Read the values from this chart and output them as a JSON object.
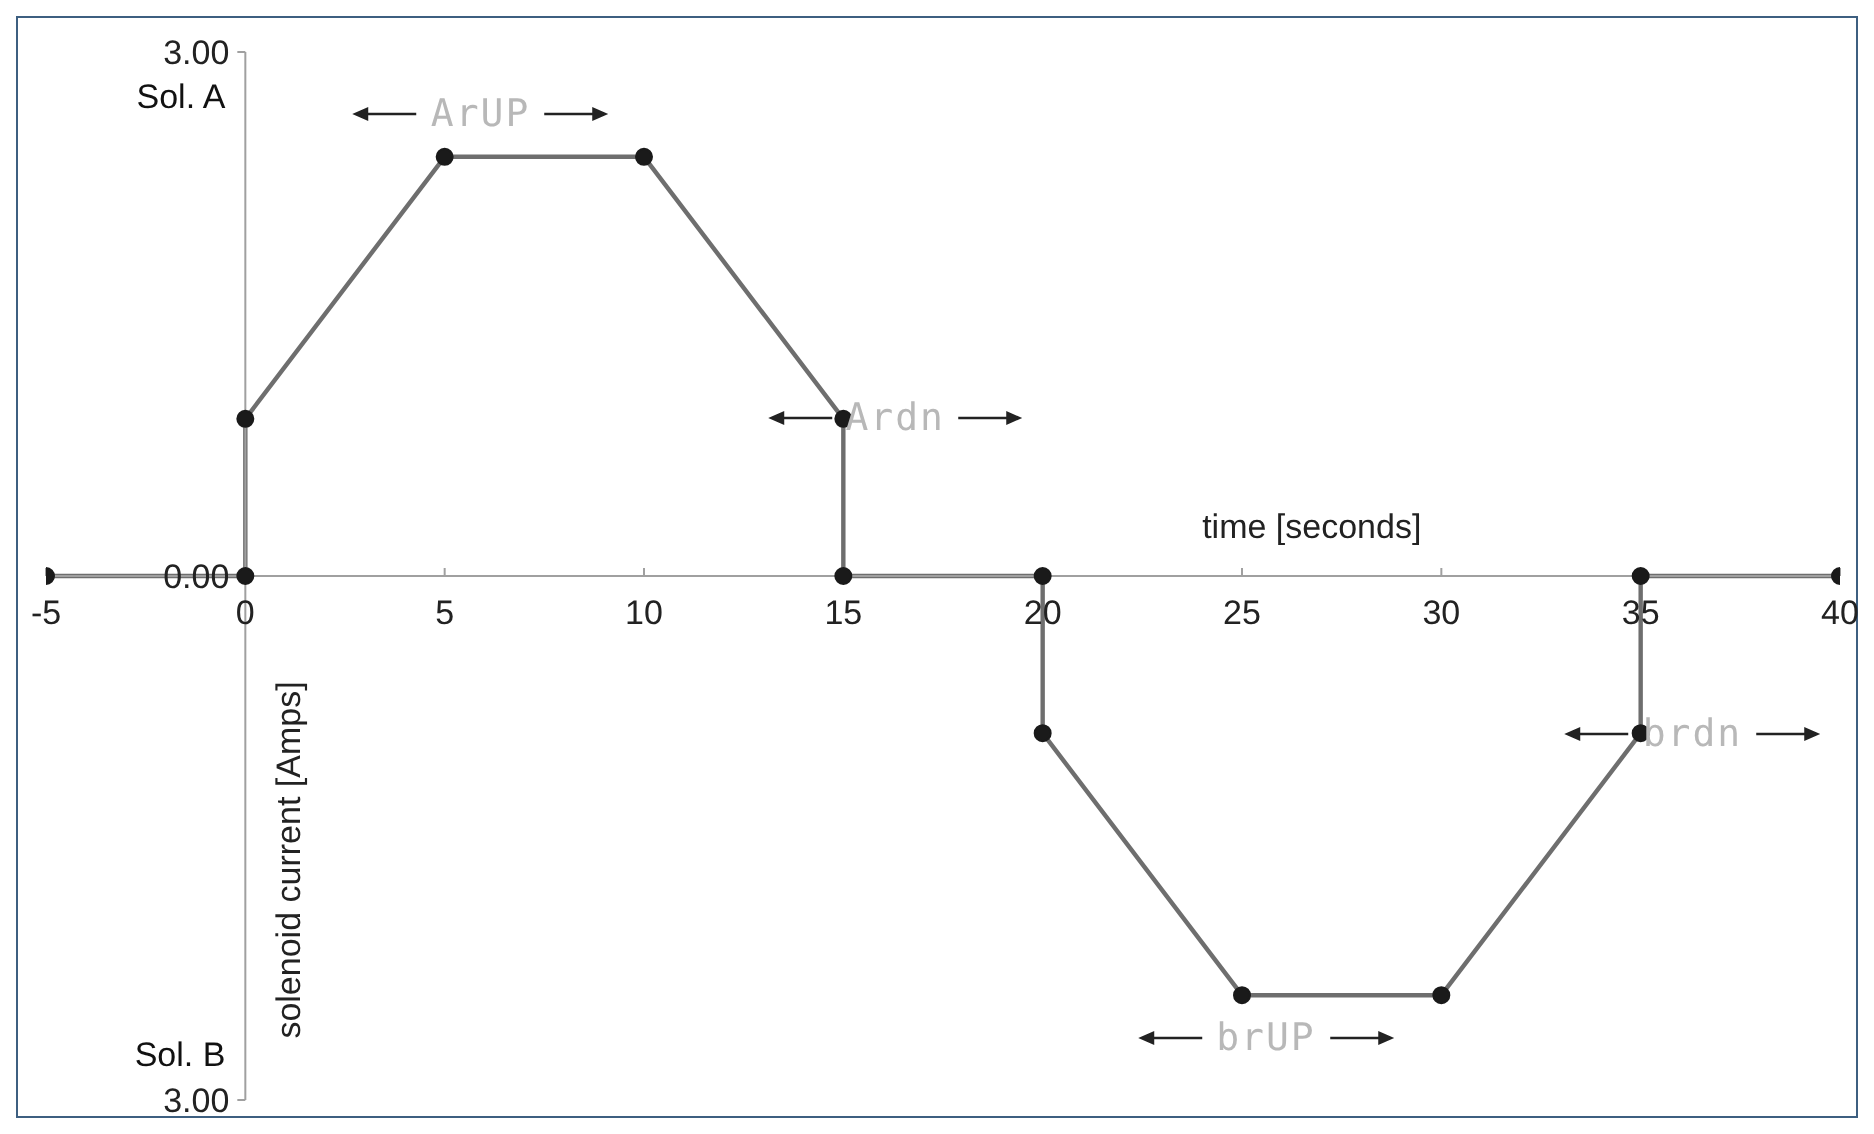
{
  "chart_data": {
    "type": "line",
    "xlabel": "time [seconds]",
    "ylabel": "solenoid current [Amps]",
    "x": [
      -5,
      0,
      0,
      5,
      10,
      15,
      15,
      20,
      20,
      25,
      30,
      35,
      35,
      40
    ],
    "series": [
      {
        "color": "#6e6e6e",
        "values": [
          0,
          0,
          0.9,
          2.4,
          2.4,
          0.9,
          0,
          0,
          -0.9,
          -2.4,
          -2.4,
          -0.9,
          0,
          0
        ]
      }
    ],
    "xlim": [
      -5,
      40
    ],
    "xticks": [
      -5,
      0,
      5,
      10,
      15,
      20,
      25,
      30,
      35,
      40
    ],
    "ylim": [
      -3,
      3
    ],
    "yticks": [
      {
        "value": 3,
        "label": "3.00"
      },
      {
        "value": 0,
        "label": "0.00"
      },
      {
        "value": -3,
        "label": "3.00"
      }
    ],
    "annotations": [
      "Sol. A",
      "Sol. B",
      "ArUP",
      "Ardn",
      "brUP",
      "brdn"
    ],
    "grid": false,
    "legend": false,
    "marker": "circle",
    "line_style": "solid"
  }
}
